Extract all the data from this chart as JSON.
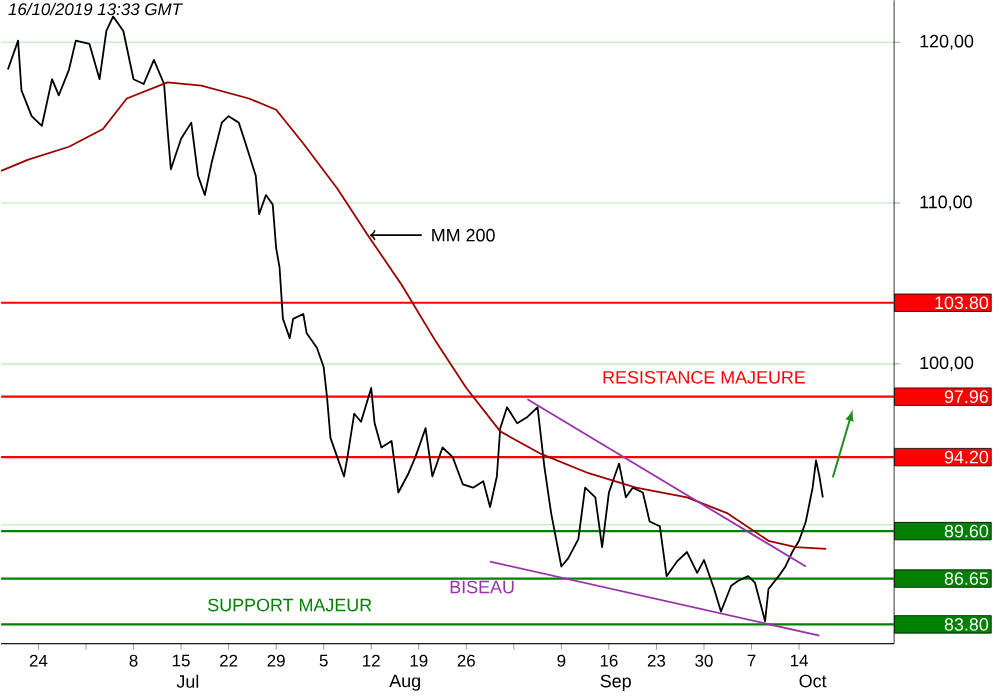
{
  "chart_data": {
    "type": "line",
    "title": "16/10/2019 13:33 GMT",
    "xlim": [
      "2019-06-18T12:00",
      "2019-10-28"
    ],
    "xticks": [
      {
        "value": "2019-06-24",
        "label": "24"
      },
      {
        "value": "2019-07-01",
        "label": null
      },
      {
        "value": "2019-07-08",
        "label": "8"
      },
      {
        "value": "2019-07-15",
        "label": "15"
      },
      {
        "value": "2019-07-22",
        "label": "22"
      },
      {
        "value": "2019-07-29",
        "label": "29"
      },
      {
        "value": "2019-08-05",
        "label": "5"
      },
      {
        "value": "2019-08-12",
        "label": "12"
      },
      {
        "value": "2019-08-19",
        "label": "19"
      },
      {
        "value": "2019-08-26",
        "label": "26"
      },
      {
        "value": "2019-09-02",
        "label": null
      },
      {
        "value": "2019-09-09",
        "label": "9"
      },
      {
        "value": "2019-09-16",
        "label": "16"
      },
      {
        "value": "2019-09-23",
        "label": "23"
      },
      {
        "value": "2019-09-30",
        "label": "30"
      },
      {
        "value": "2019-10-07",
        "label": "7"
      },
      {
        "value": "2019-10-14",
        "label": "14"
      }
    ],
    "x2lim": [
      "2019-06-18T12:00",
      "2019-10-28"
    ],
    "x2ticks": [
      {
        "value": "2019-07-16",
        "label": "Jul"
      },
      {
        "value": "2019-08-17",
        "label": "Aug"
      },
      {
        "value": "2019-09-17",
        "label": "Sep"
      },
      {
        "value": "2019-10-16",
        "label": "Oct"
      }
    ],
    "ylim": [
      82.6,
      122.6
    ],
    "yticks": [
      {
        "value": 90,
        "label": null
      },
      {
        "value": 100,
        "label": "100,00"
      },
      {
        "value": 110,
        "label": "110,00"
      },
      {
        "value": 120,
        "label": "120,00"
      }
    ],
    "grid": "y",
    "series": [
      {
        "color": "#000000",
        "x": [
          "2019-06-19T12:00",
          "2019-06-21",
          "2019-06-21T12:00",
          "2019-06-23",
          "2019-06-24T12:00",
          "2019-06-26",
          "2019-06-27",
          "2019-06-28T12:00",
          "2019-06-29T12:00",
          "2019-07-01T12:00",
          "2019-07-03",
          "2019-07-04",
          "2019-07-05",
          "2019-07-06T12:00",
          "2019-07-08",
          "2019-07-09T12:00",
          "2019-07-11",
          "2019-07-12T12:00",
          "2019-07-13",
          "2019-07-13T12:00",
          "2019-07-15",
          "2019-07-16T12:00",
          "2019-07-17T12:00",
          "2019-07-18T12:00",
          "2019-07-19T12:00",
          "2019-07-21",
          "2019-07-22",
          "2019-07-23T12:00",
          "2019-07-24T12:00",
          "2019-07-26",
          "2019-07-26T12:00",
          "2019-07-27T12:00",
          "2019-07-28T12:00",
          "2019-07-29",
          "2019-07-29T12:00",
          "2019-07-30",
          "2019-07-31",
          "2019-07-31T12:00",
          "2019-08-02",
          "2019-08-02T12:00",
          "2019-08-04",
          "2019-08-05",
          "2019-08-05T12:00",
          "2019-08-06",
          "2019-08-08",
          "2019-08-08T12:00",
          "2019-08-09T12:00",
          "2019-08-10T12:00",
          "2019-08-12",
          "2019-08-12T12:00",
          "2019-08-13T12:00",
          "2019-08-15",
          "2019-08-16",
          "2019-08-17T12:00",
          "2019-08-18T12:00",
          "2019-08-20",
          "2019-08-21",
          "2019-08-22T12:00",
          "2019-08-24",
          "2019-08-25T12:00",
          "2019-08-27",
          "2019-08-28T12:00",
          "2019-08-29T12:00",
          "2019-08-30T12:00",
          "2019-08-31",
          "2019-09-01",
          "2019-09-02T12:00",
          "2019-09-04",
          "2019-09-05T12:00",
          "2019-09-06T12:00",
          "2019-09-07T12:00",
          "2019-09-09",
          "2019-09-10",
          "2019-09-11T12:00",
          "2019-09-12T12:00",
          "2019-09-14",
          "2019-09-15",
          "2019-09-16",
          "2019-09-17T12:00",
          "2019-09-18T12:00",
          "2019-09-19T12:00",
          "2019-09-21",
          "2019-09-22",
          "2019-09-23T12:00",
          "2019-09-24T12:00",
          "2019-09-26",
          "2019-09-27T12:00",
          "2019-09-29",
          "2019-09-30",
          "2019-10-01T12:00",
          "2019-10-02T12:00",
          "2019-10-04",
          "2019-10-05",
          "2019-10-06T12:00",
          "2019-10-07T12:00",
          "2019-10-09",
          "2019-10-09T12:00",
          "2019-10-11",
          "2019-10-12",
          "2019-10-13",
          "2019-10-14",
          "2019-10-15",
          "2019-10-16",
          "2019-10-16T12:00",
          "2019-10-17",
          "2019-10-17T12:00"
        ],
        "values": [
          118.3,
          120.1,
          117.0,
          115.4,
          114.8,
          117.7,
          116.7,
          118.3,
          120.1,
          119.9,
          117.7,
          120.7,
          121.6,
          120.7,
          117.7,
          117.4,
          118.9,
          117.4,
          114.6,
          112.1,
          114.0,
          115.0,
          111.7,
          110.5,
          112.5,
          115.0,
          115.4,
          115.0,
          113.7,
          111.7,
          109.3,
          110.5,
          109.9,
          107.2,
          106.0,
          102.8,
          101.6,
          102.8,
          103.1,
          101.9,
          101.0,
          99.8,
          97.9,
          95.4,
          93.0,
          94.2,
          96.9,
          96.4,
          98.5,
          96.3,
          94.8,
          95.2,
          92.0,
          93.2,
          94.2,
          96.0,
          93.0,
          94.8,
          94.2,
          92.5,
          92.3,
          92.7,
          91.1,
          93.0,
          96.0,
          97.3,
          96.3,
          96.7,
          97.3,
          93.6,
          90.7,
          87.4,
          87.9,
          89.1,
          92.3,
          91.7,
          88.6,
          92.0,
          93.8,
          91.7,
          92.3,
          92.0,
          90.2,
          89.9,
          86.8,
          87.7,
          88.3,
          87.0,
          87.8,
          86.0,
          84.6,
          86.2,
          86.5,
          86.8,
          86.4,
          84.0,
          86.0,
          86.8,
          87.4,
          88.3,
          89.0,
          90.2,
          92.3,
          94.0,
          93.0,
          91.7
        ]
      },
      {
        "color": "#990000",
        "x": [
          "2019-06-18T12:00",
          "2019-06-22T12:00",
          "2019-06-28T12:00",
          "2019-07-03T12:00",
          "2019-07-07",
          "2019-07-13",
          "2019-07-18",
          "2019-07-25",
          "2019-07-29",
          "2019-08-02",
          "2019-08-07",
          "2019-08-11T12:00",
          "2019-08-16T12:00",
          "2019-08-21T12:00",
          "2019-08-26",
          "2019-08-31",
          "2019-09-06",
          "2019-09-13",
          "2019-09-20",
          "2019-09-27T12:00",
          "2019-10-03T12:00",
          "2019-10-09T12:00",
          "2019-10-13T12:00",
          "2019-10-18"
        ],
        "values": [
          112.0,
          112.7,
          113.5,
          114.6,
          116.5,
          117.5,
          117.3,
          116.5,
          115.8,
          113.7,
          110.9,
          108.0,
          104.9,
          101.4,
          98.5,
          95.8,
          94.4,
          93.2,
          92.3,
          91.7,
          90.7,
          89.0,
          88.6,
          88.5
        ]
      },
      {
        "color": "#9933aa",
        "x": [
          "2019-09-04",
          "2019-10-15"
        ],
        "values": [
          97.8,
          87.4
        ]
      },
      {
        "name": "BISEAU",
        "color": "#9933aa",
        "x": [
          "2019-08-29T12:00",
          "2019-10-17"
        ],
        "values": [
          87.7,
          83.1
        ]
      }
    ],
    "ref_lines": [
      {
        "axis": "y",
        "value": 103.8,
        "label": "103.80",
        "color": "#ff0000"
      },
      {
        "axis": "y",
        "value": 97.96,
        "label": "97.96",
        "color": "#ff0000"
      },
      {
        "axis": "y",
        "value": 94.2,
        "label": "94.20",
        "color": "#ff0000"
      },
      {
        "axis": "y",
        "value": 89.6,
        "label": "89.60",
        "color": "#008000"
      },
      {
        "axis": "y",
        "value": 86.65,
        "label": "86.65",
        "color": "#008000"
      },
      {
        "axis": "y",
        "value": 83.8,
        "label": "83.80",
        "color": "#008000"
      }
    ],
    "annotations": [
      {
        "text": "RESISTANCE MAJEURE",
        "x": "2019-09-30",
        "y": 97.96
      },
      {
        "text": "SUPPORT MAJEUR",
        "x": "2019-07-31",
        "y": 83.8
      },
      "MM 200"
    ]
  }
}
